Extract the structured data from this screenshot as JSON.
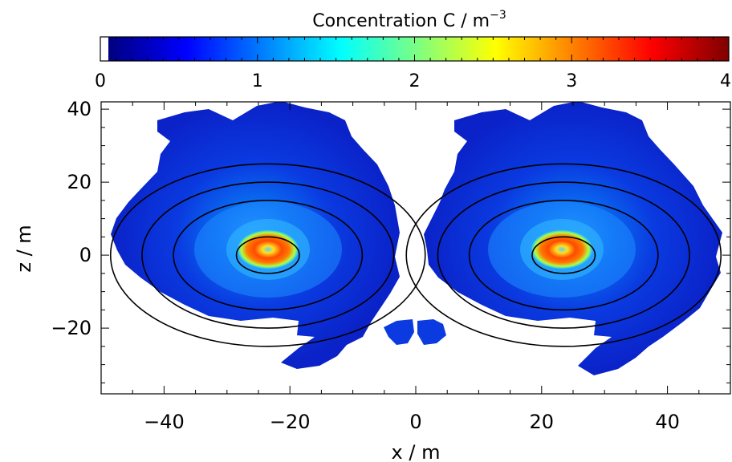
{
  "chart_data": {
    "type": "heatmap",
    "colorbar": {
      "title": "Concentration C / m",
      "title_superscript": "−3",
      "range": [
        0,
        4
      ],
      "ticks": [
        "0",
        "1",
        "2",
        "3",
        "4"
      ],
      "colormap": "jet",
      "stops": [
        "#00007f",
        "#0000ff",
        "#007fff",
        "#00ffff",
        "#7fff7f",
        "#ffff00",
        "#ff7f00",
        "#ff0000",
        "#7f0000"
      ]
    },
    "xlabel": "x / m",
    "ylabel": "z / m",
    "xlim": [
      -50,
      50
    ],
    "ylim": [
      -38,
      42
    ],
    "xticks": [
      "−40",
      "−20",
      "0",
      "20",
      "40"
    ],
    "yticks": [
      "−20",
      "0",
      "20",
      "40"
    ],
    "blobs": [
      {
        "name": "left",
        "center": [
          -23.5,
          0
        ],
        "peak": 3.4
      },
      {
        "name": "right",
        "center": [
          23.5,
          0
        ],
        "peak": 3.4
      }
    ],
    "ellipses": [
      {
        "center": [
          -23.5,
          0
        ],
        "semi_axes": [
          5,
          5
        ]
      },
      {
        "center": [
          -23.5,
          0
        ],
        "semi_axes": [
          15,
          15
        ]
      },
      {
        "center": [
          -23.5,
          0
        ],
        "semi_axes": [
          20,
          20
        ]
      },
      {
        "center": [
          -23.5,
          0
        ],
        "semi_axes": [
          25,
          25
        ]
      },
      {
        "center": [
          23.5,
          0
        ],
        "semi_axes": [
          5,
          5
        ]
      },
      {
        "center": [
          23.5,
          0
        ],
        "semi_axes": [
          15,
          15
        ]
      },
      {
        "center": [
          23.5,
          0
        ],
        "semi_axes": [
          20,
          20
        ]
      },
      {
        "center": [
          23.5,
          0
        ],
        "semi_axes": [
          25,
          25
        ]
      }
    ]
  }
}
